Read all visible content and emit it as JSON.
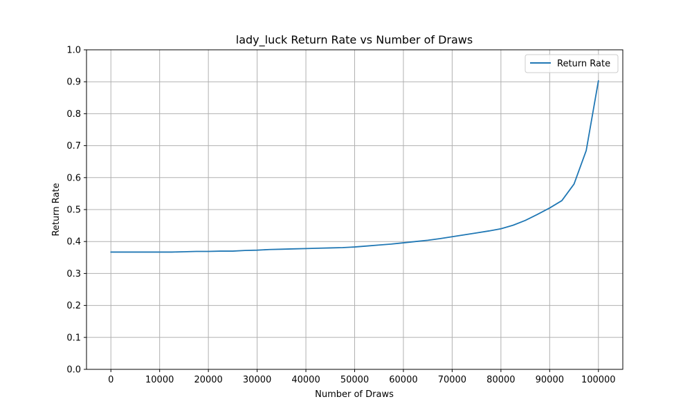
{
  "chart_data": {
    "type": "line",
    "title": "lady_luck Return Rate vs Number of Draws",
    "xlabel": "Number of Draws",
    "ylabel": "Return Rate",
    "xlim": [
      -5000,
      105000
    ],
    "ylim": [
      0.0,
      1.0
    ],
    "xticks": [
      0,
      10000,
      20000,
      30000,
      40000,
      50000,
      60000,
      70000,
      80000,
      90000,
      100000
    ],
    "xtick_labels": [
      "0",
      "10000",
      "20000",
      "30000",
      "40000",
      "50000",
      "60000",
      "70000",
      "80000",
      "90000",
      "100000"
    ],
    "yticks": [
      0.0,
      0.1,
      0.2,
      0.3,
      0.4,
      0.5,
      0.6,
      0.7,
      0.8,
      0.9,
      1.0
    ],
    "ytick_labels": [
      "0.0",
      "0.1",
      "0.2",
      "0.3",
      "0.4",
      "0.5",
      "0.6",
      "0.7",
      "0.8",
      "0.9",
      "1.0"
    ],
    "grid": true,
    "legend": {
      "placement": "top-right",
      "entries": [
        "Return Rate"
      ]
    },
    "series": [
      {
        "name": "Return Rate",
        "color": "#1f77b4",
        "x": [
          0,
          2500,
          5000,
          7500,
          10000,
          12500,
          15000,
          17500,
          20000,
          22500,
          25000,
          27500,
          30000,
          32500,
          35000,
          37500,
          40000,
          42500,
          45000,
          47500,
          50000,
          52500,
          55000,
          57500,
          60000,
          62500,
          65000,
          67500,
          70000,
          72500,
          75000,
          77500,
          80000,
          82500,
          85000,
          87500,
          90000,
          92500,
          95000,
          97500,
          100000
        ],
        "y": [
          0.367,
          0.367,
          0.367,
          0.367,
          0.367,
          0.367,
          0.368,
          0.369,
          0.369,
          0.37,
          0.37,
          0.372,
          0.373,
          0.375,
          0.376,
          0.377,
          0.378,
          0.379,
          0.38,
          0.381,
          0.383,
          0.386,
          0.389,
          0.392,
          0.396,
          0.4,
          0.404,
          0.409,
          0.415,
          0.421,
          0.427,
          0.433,
          0.44,
          0.451,
          0.466,
          0.485,
          0.505,
          0.528,
          0.58,
          0.685,
          0.903
        ]
      }
    ]
  }
}
